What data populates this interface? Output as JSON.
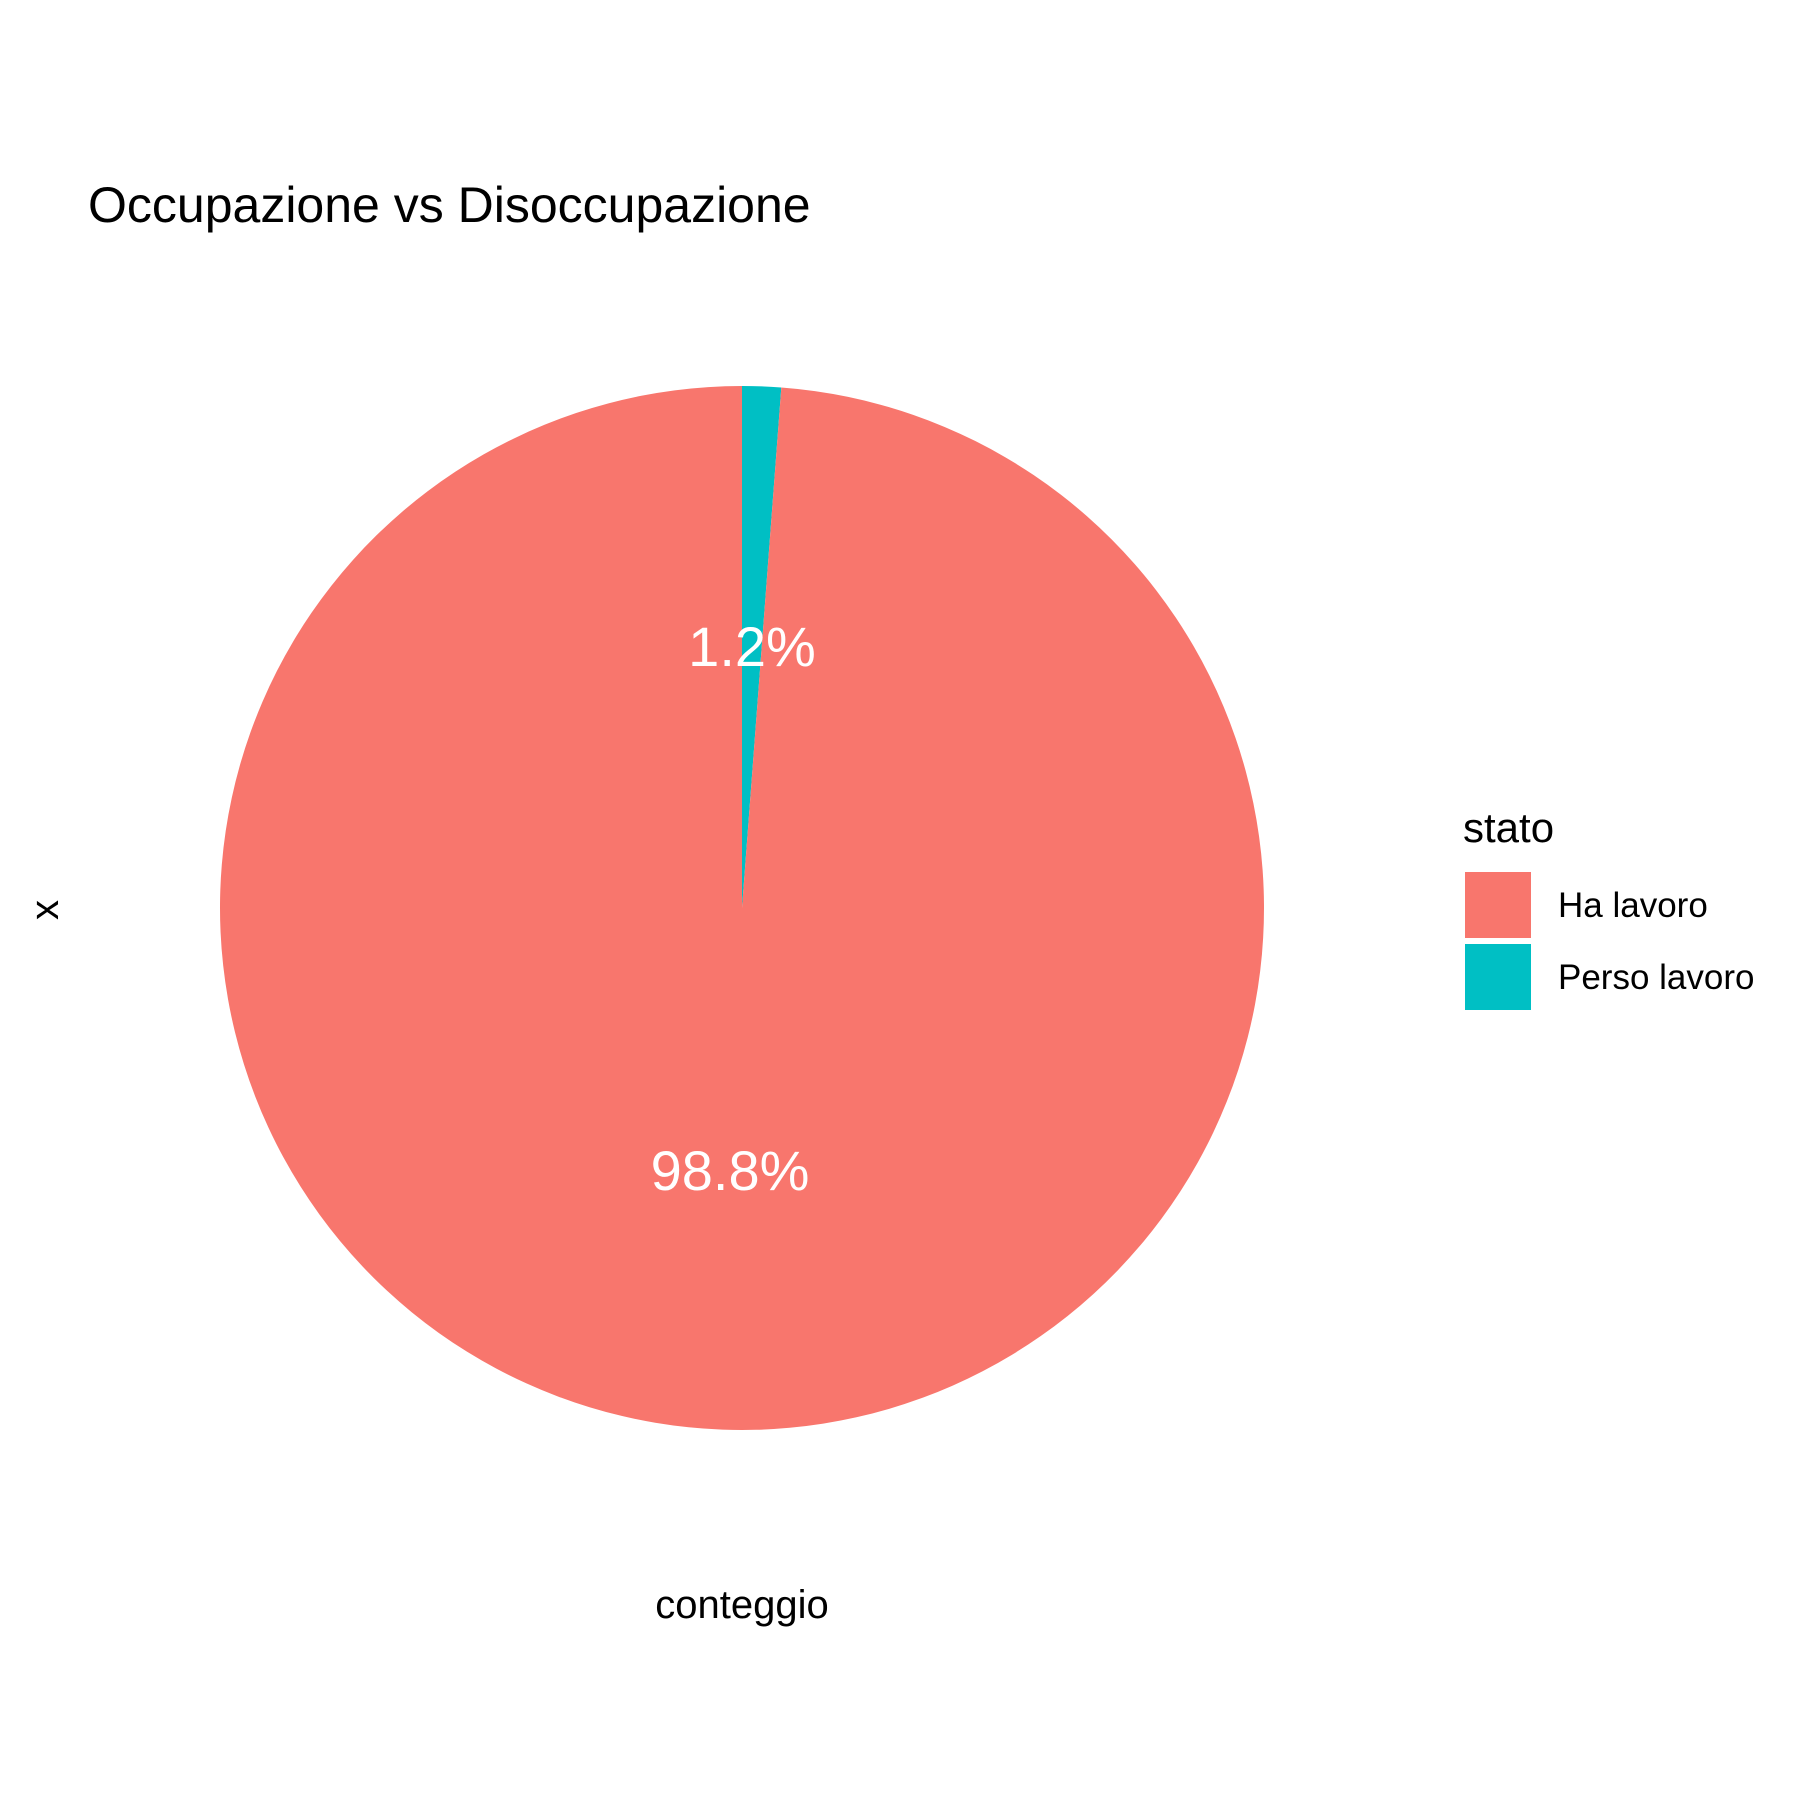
{
  "chart_data": {
    "type": "pie",
    "title": "Occupazione vs Disoccupazione",
    "xlabel": "conteggio",
    "ylabel": "x",
    "slices": [
      {
        "name": "Ha lavoro",
        "value": 98.8,
        "label": "98.8%",
        "color": "#F8766D"
      },
      {
        "name": "Perso lavoro",
        "value": 1.2,
        "label": "1.2%",
        "color": "#00BFC4"
      }
    ],
    "legend": {
      "title": "stato",
      "position": "right",
      "entries": [
        "Ha lavoro",
        "Perso lavoro"
      ]
    },
    "grid": false
  }
}
